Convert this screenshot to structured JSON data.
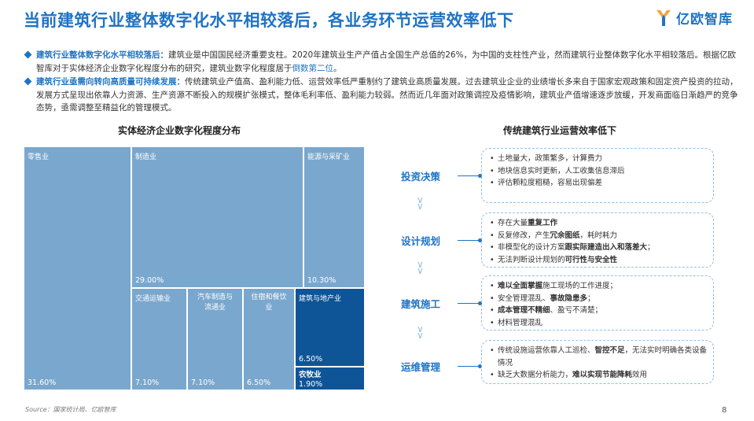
{
  "title": "当前建筑行业整体数字化水平相较落后，各业务环节运营效率低下",
  "logo": {
    "brand": "亿欧智库"
  },
  "bullets": [
    {
      "head": "建筑行业整体数字化水平相较落后：",
      "text": "建筑业是中国国民经济重要支柱。2020年建筑业生产产值占全国生产总值的26%，为中国的支柱性产业，然而建筑行业整体数字化水平相较落后。根据亿欧智库对于实体经济企业数字化程度分布的研究，建筑业数字化程度居于",
      "highlight": "倒数第二位",
      "tail": "。"
    },
    {
      "head": "建筑行业亟需向转向高质量可持续发展：",
      "text": "传统建筑业产值高、盈利能力低、运营效率低严重制约了建筑业高质量发展。过去建筑业企业的业绩增长多来自于国家宏观政策和固定资产投资的拉动，发展方式呈现出依靠人力资源、生产资源不断投入的规模扩张模式，整体毛利率低、盈利能力较弱。然而近几年面对政策调控及疫情影响，建筑业产值增速逐步放缓，开发商面临日渐趋严的竞争态势，亟需调整至精益化的管理模式。",
      "highlight": "",
      "tail": ""
    }
  ],
  "treemap": {
    "title": "实体经济企业数字化程度分布",
    "cells": [
      {
        "label": "零售业",
        "value": "31.60%",
        "share": 31.6
      },
      {
        "label": "制造业",
        "value": "29.00%",
        "share": 29.0
      },
      {
        "label": "能源与采矿业",
        "value": "10.30%",
        "share": 10.3
      },
      {
        "label": "交通运输业",
        "value": "7.10%",
        "share": 7.1
      },
      {
        "label": "汽车制造与流通业",
        "value": "7.10%",
        "share": 7.1
      },
      {
        "label": "住宿和餐饮业",
        "value": "6.50%",
        "share": 6.5
      },
      {
        "label": "建筑与地产业",
        "value": "6.50%",
        "share": 6.5
      },
      {
        "label": "农牧业",
        "value": "1.90%",
        "share": 1.9
      }
    ],
    "colors": {
      "base": "#7aa7cd",
      "highlight": "#0e5597",
      "dark": "#1f4e7a"
    }
  },
  "flow": {
    "title": "传统建筑行业运营效率低下",
    "stages": [
      {
        "name": "投资决策",
        "items": [
          [
            {
              "t": "土地量大，政策繁多，计算费力",
              "b": false
            }
          ],
          [
            {
              "t": "地块信息实时更新，人工收集信息滞后",
              "b": false
            }
          ],
          [
            {
              "t": "评估颗粒度粗糙，容易出现偏差",
              "b": false
            }
          ]
        ]
      },
      {
        "name": "设计规划",
        "items": [
          [
            {
              "t": "存在大量",
              "b": false
            },
            {
              "t": "重复工作",
              "b": true
            }
          ],
          [
            {
              "t": "反复修改，产生",
              "b": false
            },
            {
              "t": "冗余图纸",
              "b": true
            },
            {
              "t": "，耗时耗力",
              "b": false
            }
          ],
          [
            {
              "t": "非模型化的设计方案",
              "b": false
            },
            {
              "t": "跟实际建造出入和落差大",
              "b": true
            },
            {
              "t": "；",
              "b": false
            }
          ],
          [
            {
              "t": "无法判断设计规划的",
              "b": false
            },
            {
              "t": "可行性与安全性",
              "b": true
            }
          ]
        ]
      },
      {
        "name": "建筑施工",
        "items": [
          [
            {
              "t": "难以全面掌握",
              "b": true
            },
            {
              "t": "施工现场的工作进度；",
              "b": false
            }
          ],
          [
            {
              "t": "安全管理混乱、",
              "b": false
            },
            {
              "t": "事故隐患多",
              "b": true
            },
            {
              "t": "；",
              "b": false
            }
          ],
          [
            {
              "t": "成本管理不精细",
              "b": true
            },
            {
              "t": "、盈亏不清楚；",
              "b": false
            }
          ],
          [
            {
              "t": "材料管理混乱",
              "b": false
            }
          ]
        ]
      },
      {
        "name": "运维管理",
        "items": [
          [
            {
              "t": "传统设施运营依靠人工巡检、",
              "b": false
            },
            {
              "t": "智控不足",
              "b": true
            },
            {
              "t": "，无法实时明确各类设备情况",
              "b": false
            }
          ],
          [
            {
              "t": "缺乏大数据分析能力，",
              "b": false
            },
            {
              "t": "难以实现节能降耗",
              "b": true
            },
            {
              "t": "效用",
              "b": false
            }
          ]
        ]
      }
    ]
  },
  "footer": {
    "source": "Source：国家统计局、亿欧智库",
    "page": "8"
  }
}
